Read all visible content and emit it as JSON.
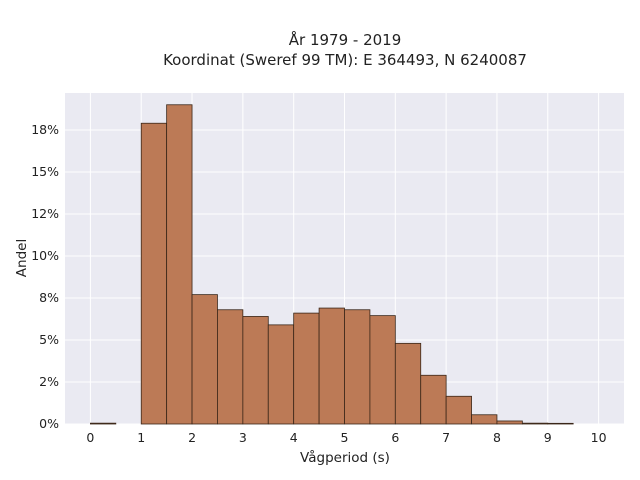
{
  "chart_data": {
    "type": "bar",
    "title": "År 1979 - 2019",
    "subtitle": "Koordinat (Sweref 99 TM): E 364493, N 6240087",
    "xlabel": "Vågperiod (s)",
    "ylabel": "Andel",
    "xlim": [
      -0.5,
      10.5
    ],
    "ylim": [
      0,
      19.7
    ],
    "x_ticks": [
      "0",
      "1",
      "2",
      "3",
      "4",
      "5",
      "6",
      "7",
      "8",
      "9",
      "10"
    ],
    "y_ticks": [
      {
        "value": 0,
        "label": "0%"
      },
      {
        "value": 2.5,
        "label": "2%"
      },
      {
        "value": 5,
        "label": "5%"
      },
      {
        "value": 7.5,
        "label": "8%"
      },
      {
        "value": 10,
        "label": "10%"
      },
      {
        "value": 12.5,
        "label": "12%"
      },
      {
        "value": 15,
        "label": "15%"
      },
      {
        "value": 17.5,
        "label": "18%"
      }
    ],
    "grid": true,
    "bar_color": "#bc7a56",
    "edge_color": "#3a2618",
    "background_color": "#eaeaf2",
    "bins": [
      {
        "x0": 0.0,
        "x1": 0.5,
        "value": 0.05
      },
      {
        "x0": 0.5,
        "x1": 1.0,
        "value": 0.0
      },
      {
        "x0": 1.0,
        "x1": 1.5,
        "value": 17.9
      },
      {
        "x0": 1.5,
        "x1": 2.0,
        "value": 19.0
      },
      {
        "x0": 2.0,
        "x1": 2.5,
        "value": 7.7
      },
      {
        "x0": 2.5,
        "x1": 3.0,
        "value": 6.8
      },
      {
        "x0": 3.0,
        "x1": 3.5,
        "value": 6.4
      },
      {
        "x0": 3.5,
        "x1": 4.0,
        "value": 5.9
      },
      {
        "x0": 4.0,
        "x1": 4.5,
        "value": 6.6
      },
      {
        "x0": 4.5,
        "x1": 5.0,
        "value": 6.9
      },
      {
        "x0": 5.0,
        "x1": 5.5,
        "value": 6.8
      },
      {
        "x0": 5.5,
        "x1": 6.0,
        "value": 6.45
      },
      {
        "x0": 6.0,
        "x1": 6.5,
        "value": 4.8
      },
      {
        "x0": 6.5,
        "x1": 7.0,
        "value": 2.9
      },
      {
        "x0": 7.0,
        "x1": 7.5,
        "value": 1.65
      },
      {
        "x0": 7.5,
        "x1": 8.0,
        "value": 0.55
      },
      {
        "x0": 8.0,
        "x1": 8.5,
        "value": 0.18
      },
      {
        "x0": 8.5,
        "x1": 9.0,
        "value": 0.05
      },
      {
        "x0": 9.0,
        "x1": 9.5,
        "value": 0.04
      },
      {
        "x0": 9.5,
        "x1": 10.0,
        "value": 0.0
      }
    ]
  }
}
